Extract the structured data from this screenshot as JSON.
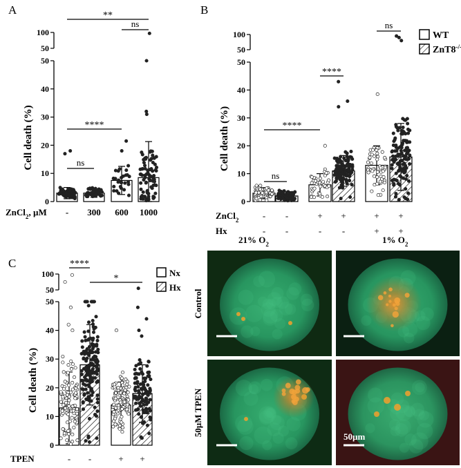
{
  "panels": [
    {
      "letter": "A",
      "chart_data": {
        "type": "bar",
        "ylabel": "Cell death (%)",
        "x_row_label": "ZnCl2, µM",
        "categories": [
          "-",
          "300",
          "600",
          "1000"
        ],
        "values": [
          3,
          3,
          7.5,
          8.5
        ],
        "errors": [
          2.0,
          1.5,
          5,
          12.8
        ],
        "ylim_lower": [
          0,
          50
        ],
        "yticks_lower": [
          0,
          10,
          20,
          30,
          40,
          50
        ],
        "ylim_upper": [
          50,
          100
        ],
        "yticks_upper": [
          50,
          100
        ],
        "significance": [
          {
            "from": 0,
            "to": 3,
            "label": "**",
            "y": 104
          },
          {
            "from": 2,
            "to": 3,
            "label": "ns",
            "y": 100
          },
          {
            "from": 0,
            "to": 1,
            "label": "ns",
            "y": 13
          },
          {
            "from": 0,
            "to": 2,
            "label": "****",
            "y": 24
          }
        ]
      }
    },
    {
      "letter": "B",
      "chart_data": {
        "type": "bar",
        "ylabel": "Cell death (%)",
        "legend": [
          "WT",
          "ZnT8-/-"
        ],
        "legend_position": "top-right",
        "row_labels": [
          "ZnCl2",
          "Hx"
        ],
        "groups": [
          {
            "ZnCl2": "-",
            "Hx": "-",
            "values": [
              3,
              2
            ],
            "errors": [
              2.0,
              1.5
            ]
          },
          {
            "ZnCl2": "+",
            "Hx": "-",
            "values": [
              6,
              11
            ],
            "errors": [
              4,
              5.5
            ]
          },
          {
            "ZnCl2": "+",
            "Hx": "+",
            "values": [
              13,
              16
            ],
            "errors": [
              7,
              12
            ]
          }
        ],
        "ylim_lower": [
          0,
          50
        ],
        "yticks_lower": [
          0,
          10,
          20,
          30,
          40,
          50
        ],
        "ylim_upper": [
          50,
          100
        ],
        "yticks_upper": [
          50,
          100
        ],
        "significance": [
          {
            "label": "ns",
            "between": "group0"
          },
          {
            "label": "****",
            "between": "group1"
          },
          {
            "label": "****",
            "between": "group0-group1"
          },
          {
            "label": "ns",
            "between": "group2"
          }
        ]
      }
    },
    {
      "letter": "C",
      "chart_data": {
        "type": "bar",
        "ylabel": "Cell death (%)",
        "legend": [
          "Nx",
          "Hx"
        ],
        "legend_position": "top-right",
        "x_row_label": "TPEN",
        "groups": [
          {
            "TPEN": "-",
            "values": [
              13,
              28
            ],
            "errors": [
              12.5,
              14
            ]
          },
          {
            "TPEN": "+",
            "values": [
              14,
              18
            ],
            "errors": [
              8,
              10
            ]
          }
        ],
        "ylim_lower": [
          0,
          50
        ],
        "yticks_lower": [
          0,
          10,
          20,
          30,
          40,
          50
        ],
        "ylim_upper": [
          50,
          100
        ],
        "yticks_upper": [
          50,
          100
        ],
        "significance": [
          {
            "label": "****",
            "between": "group0"
          },
          {
            "label": "*",
            "between": "group0-group1"
          }
        ]
      }
    }
  ],
  "micrograph": {
    "columns": [
      "21% O2",
      "1% O2"
    ],
    "rows": [
      "Control",
      "50µM TPEN"
    ],
    "scale_label": "50µm",
    "cell_color": "#2aa86a",
    "zinc_stain_color": "#e07a1a"
  }
}
